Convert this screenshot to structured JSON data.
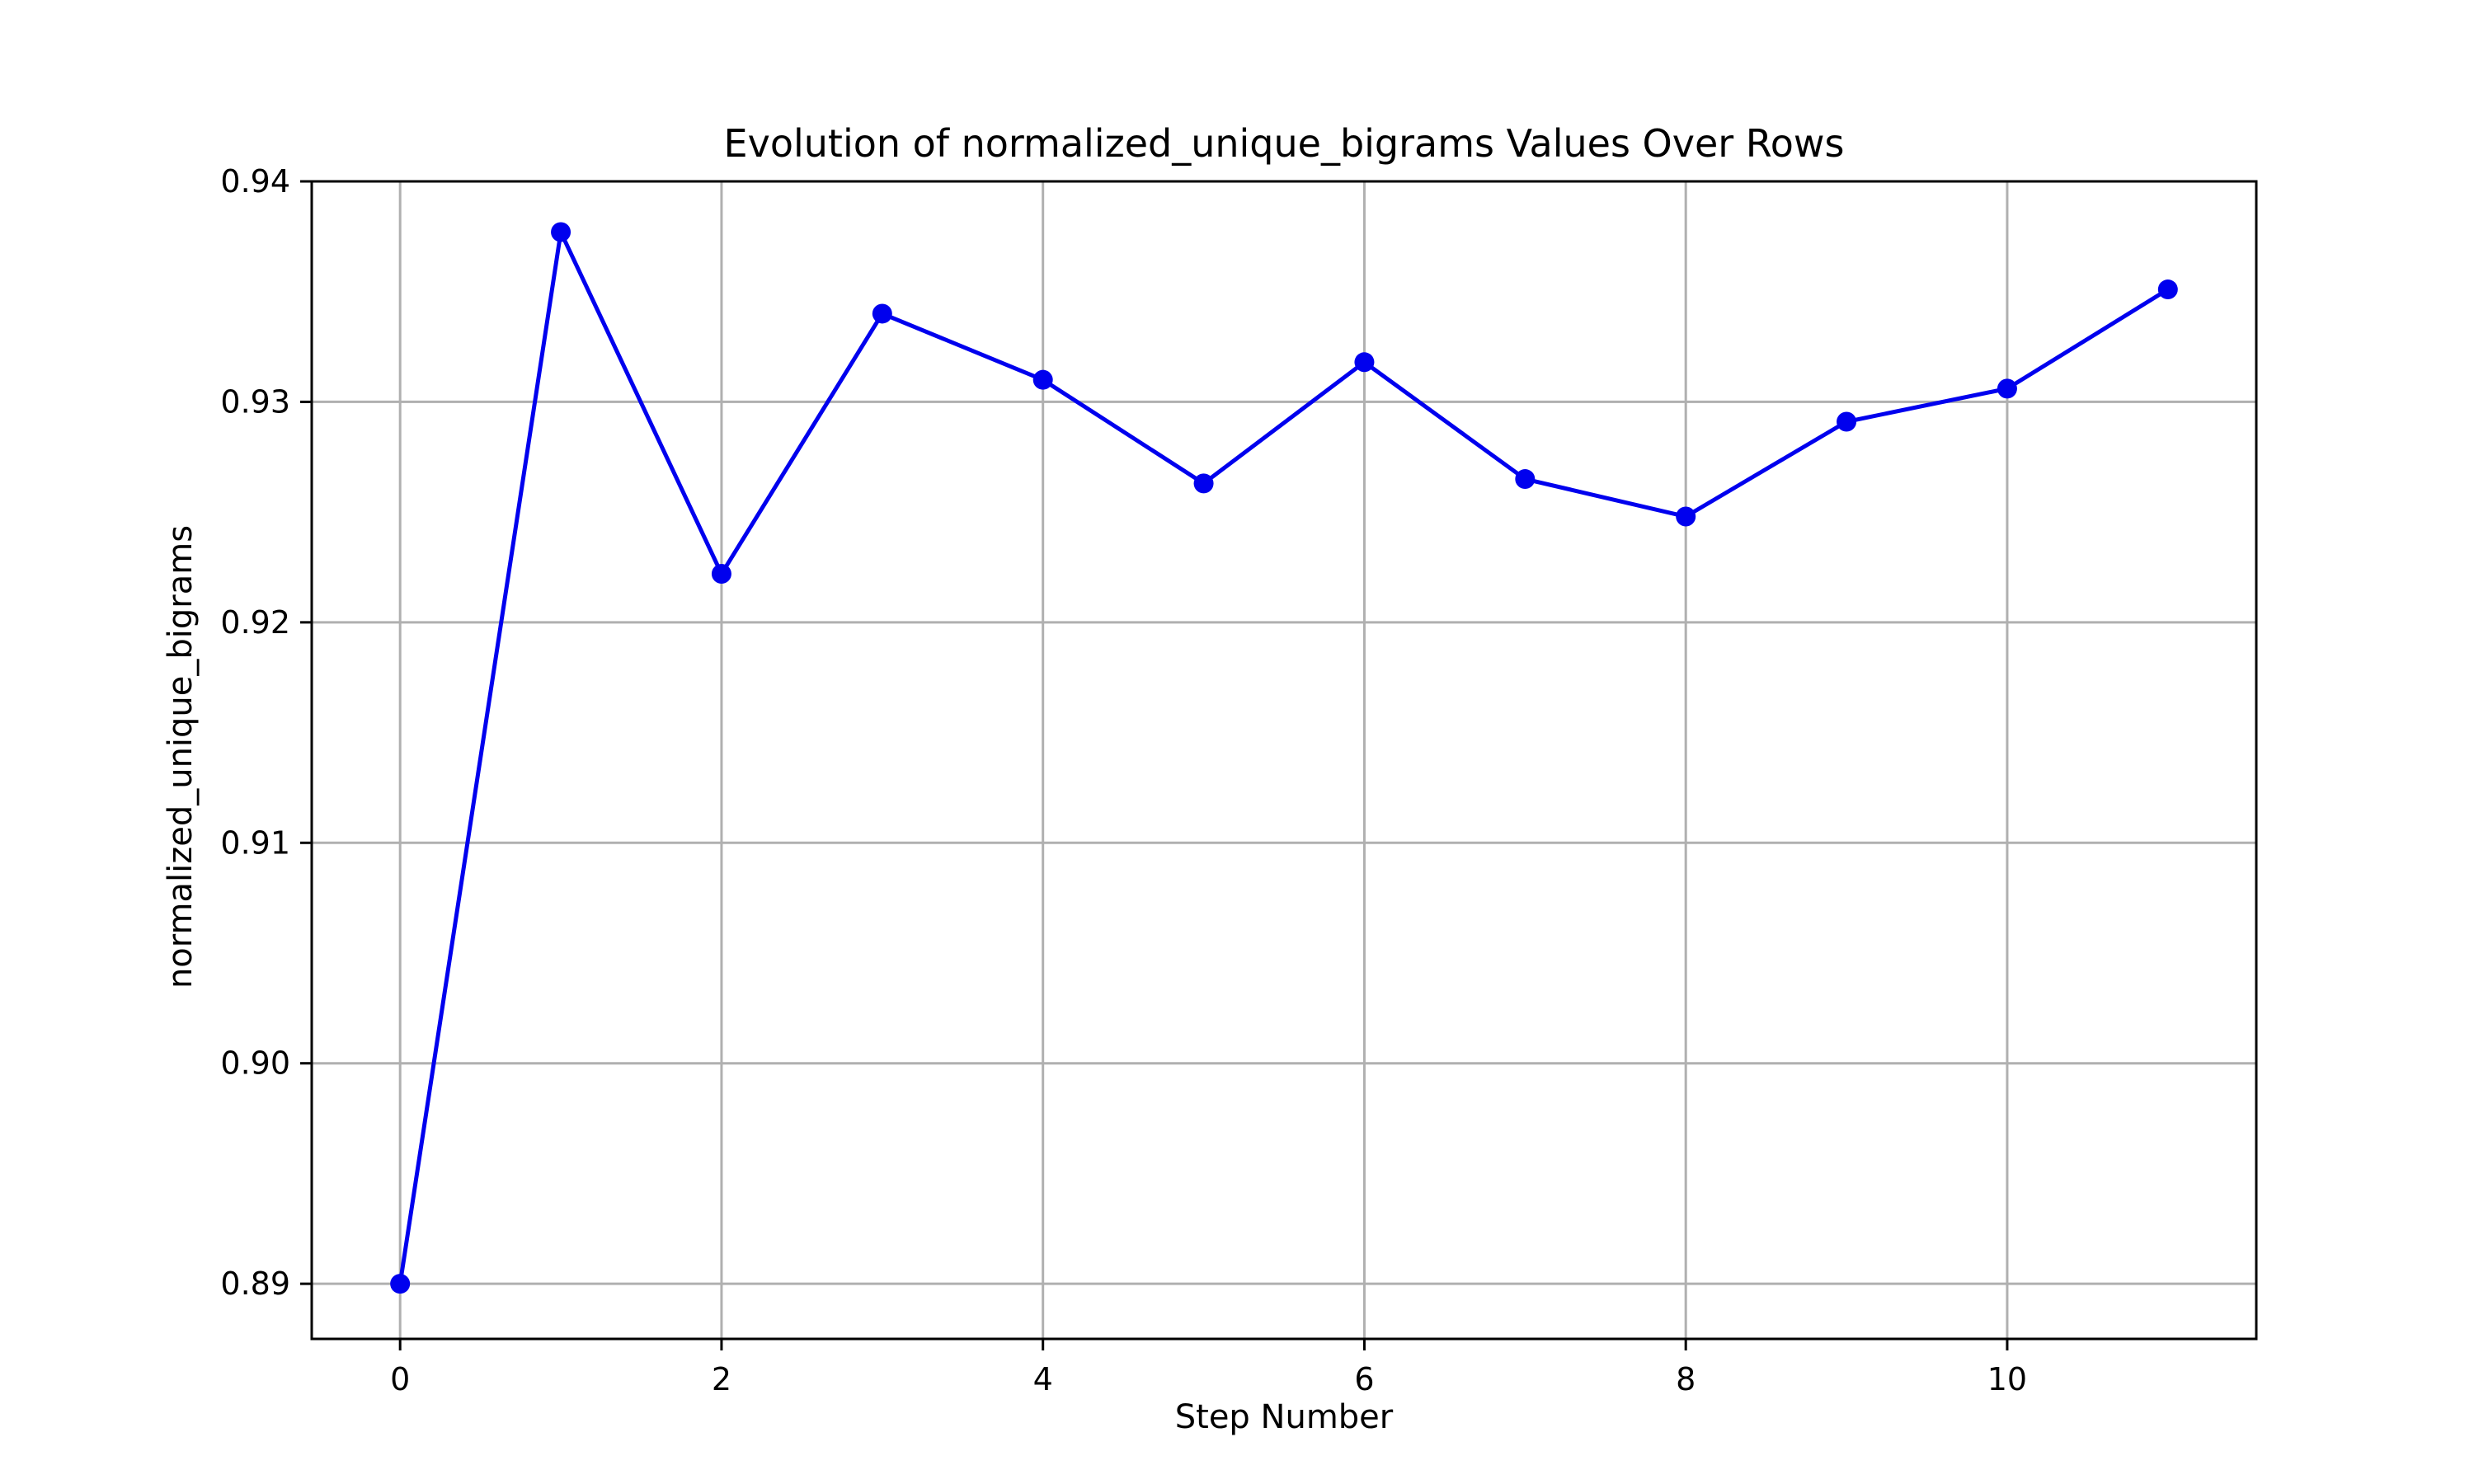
{
  "chart_data": {
    "type": "line",
    "title": "Evolution of normalized_unique_bigrams Values Over Rows",
    "xlabel": "Step Number",
    "ylabel": "normalized_unique_bigrams",
    "x": [
      0,
      1,
      2,
      3,
      4,
      5,
      6,
      7,
      8,
      9,
      10,
      11
    ],
    "series": [
      {
        "values": [
          0.89,
          0.9377,
          0.9222,
          0.934,
          0.931,
          0.9263,
          0.9318,
          0.9265,
          0.9248,
          0.9291,
          0.9306,
          0.9351
        ]
      }
    ],
    "xlim": [
      -0.55,
      11.55
    ],
    "ylim": [
      0.8875,
      0.94
    ],
    "xticks": [
      0,
      2,
      4,
      6,
      8,
      10
    ],
    "xtick_labels": [
      "0",
      "2",
      "4",
      "6",
      "8",
      "10"
    ],
    "yticks": [
      0.89,
      0.9,
      0.91,
      0.92,
      0.93,
      0.94
    ],
    "ytick_labels": [
      "0.89",
      "0.90",
      "0.91",
      "0.92",
      "0.93",
      "0.94"
    ],
    "grid": true,
    "line_color": "#0000ee",
    "marker": "circle"
  }
}
